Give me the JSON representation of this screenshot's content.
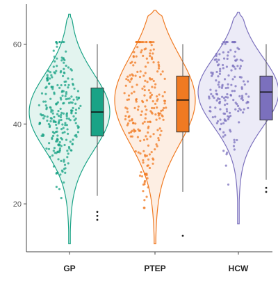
{
  "chart_data": {
    "type": "violin",
    "title": "",
    "xlabel": "",
    "ylabel": "",
    "categories": [
      "GP",
      "PTEP",
      "HCW"
    ],
    "y_ticks": [
      "20",
      "40",
      "60"
    ],
    "y_tick_values": [
      20,
      40,
      60
    ],
    "ylim": [
      8,
      70
    ],
    "grid": false,
    "legend": "none",
    "series": [
      {
        "category": "GP",
        "color": "#1aa386",
        "fill": "#e3f4ef",
        "violin_min": 10,
        "violin_max": 67.5,
        "box": {
          "whisker_low": 22,
          "q1": 37,
          "median": 43,
          "q3": 49,
          "whisker_high": 60
        },
        "outliers": [
          16,
          17,
          18
        ],
        "n_points": 260
      },
      {
        "category": "PTEP",
        "color": "#f07a22",
        "fill": "#fdeee3",
        "violin_min": 10,
        "violin_max": 68.5,
        "box": {
          "whisker_low": 23,
          "q1": 38,
          "median": 46,
          "q3": 52,
          "whisker_high": 60
        },
        "outliers": [
          12
        ],
        "n_points": 230
      },
      {
        "category": "HCW",
        "color": "#7b70bd",
        "fill": "#ecebf7",
        "violin_min": 15,
        "violin_max": 68,
        "box": {
          "whisker_low": 26,
          "q1": 41,
          "median": 48,
          "q3": 52,
          "whisker_high": 60
        },
        "outliers": [
          23,
          24
        ],
        "n_points": 170
      }
    ]
  }
}
